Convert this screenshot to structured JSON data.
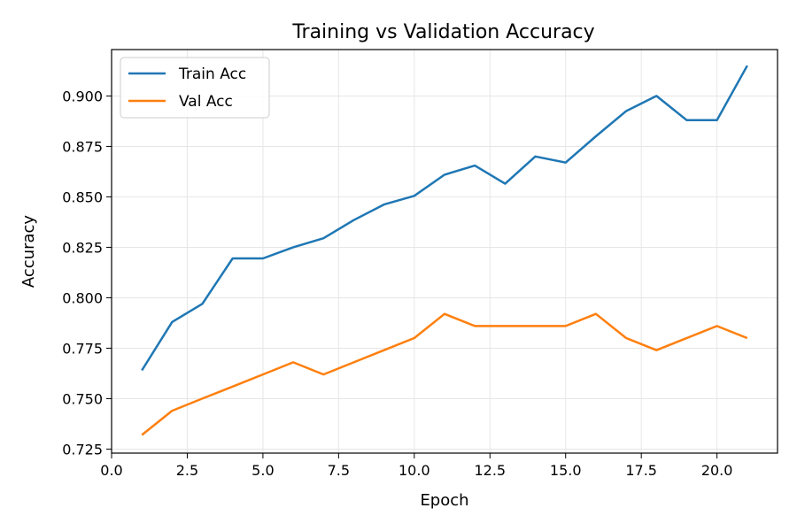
{
  "chart_data": {
    "type": "line",
    "title": "Training vs Validation Accuracy",
    "xlabel": "Epoch",
    "ylabel": "Accuracy",
    "xlim": [
      0,
      22
    ],
    "ylim": [
      0.723,
      0.923
    ],
    "xticks": [
      "0.0",
      "2.5",
      "5.0",
      "7.5",
      "10.0",
      "12.5",
      "15.0",
      "17.5",
      "20.0"
    ],
    "yticks": [
      "0.725",
      "0.750",
      "0.775",
      "0.800",
      "0.825",
      "0.850",
      "0.875",
      "0.900"
    ],
    "grid": true,
    "legend_position": "top-left",
    "series": [
      {
        "name": "Train Acc",
        "color": "#1f77b4",
        "x": [
          1,
          2,
          3,
          4,
          5,
          6,
          7,
          8,
          9,
          10,
          11,
          12,
          13,
          14,
          15,
          16,
          17,
          18,
          19,
          20,
          21
        ],
        "y": [
          0.764,
          0.788,
          0.797,
          0.8195,
          0.8195,
          0.825,
          0.8295,
          0.8385,
          0.8462,
          0.8505,
          0.861,
          0.8655,
          0.8565,
          0.87,
          0.867,
          0.88,
          0.8925,
          0.9,
          0.888,
          0.888,
          0.915
        ]
      },
      {
        "name": "Val Acc",
        "color": "#ff7f0e",
        "x": [
          1,
          2,
          3,
          4,
          5,
          6,
          7,
          8,
          9,
          10,
          11,
          12,
          13,
          14,
          15,
          16,
          17,
          18,
          19,
          20,
          21
        ],
        "y": [
          0.732,
          0.744,
          0.75,
          0.756,
          0.762,
          0.768,
          0.762,
          0.768,
          0.774,
          0.78,
          0.792,
          0.786,
          0.786,
          0.786,
          0.786,
          0.792,
          0.78,
          0.774,
          0.78,
          0.786,
          0.78
        ]
      }
    ]
  }
}
